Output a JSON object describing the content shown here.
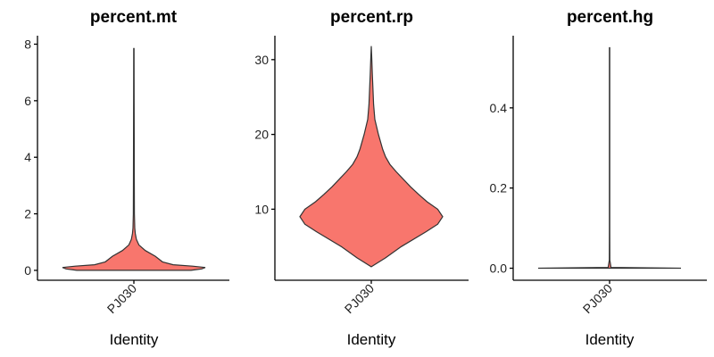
{
  "chart_data": [
    {
      "type": "violin",
      "title": "percent.mt",
      "xlabel": "Identity",
      "ylabel": "",
      "categories": [
        "PJ030"
      ],
      "ylim": [
        -0.35,
        8.3
      ],
      "yticks": [
        0,
        2,
        4,
        6,
        8
      ],
      "fill": "#F8766D",
      "density": [
        [
          0.0,
          0.8
        ],
        [
          0.05,
          0.95
        ],
        [
          0.1,
          1.0
        ],
        [
          0.15,
          0.82
        ],
        [
          0.2,
          0.55
        ],
        [
          0.3,
          0.4
        ],
        [
          0.5,
          0.3
        ],
        [
          0.7,
          0.16
        ],
        [
          0.9,
          0.07
        ],
        [
          1.1,
          0.035
        ],
        [
          1.3,
          0.02
        ],
        [
          1.5,
          0.012
        ],
        [
          2.0,
          0.008
        ],
        [
          3.0,
          0.006
        ],
        [
          4.5,
          0.005
        ],
        [
          6.0,
          0.004
        ],
        [
          7.85,
          0.003
        ]
      ]
    },
    {
      "type": "violin",
      "title": "percent.rp",
      "xlabel": "Identity",
      "ylabel": "",
      "categories": [
        "PJ030"
      ],
      "ylim": [
        0.5,
        33.2
      ],
      "yticks": [
        10,
        20,
        30
      ],
      "fill": "#F8766D",
      "density": [
        [
          2.3,
          0.0
        ],
        [
          3.5,
          0.2
        ],
        [
          5,
          0.42
        ],
        [
          7,
          0.77
        ],
        [
          8,
          0.93
        ],
        [
          9,
          1.0
        ],
        [
          10,
          0.93
        ],
        [
          11,
          0.78
        ],
        [
          12,
          0.66
        ],
        [
          13,
          0.55
        ],
        [
          14,
          0.45
        ],
        [
          15,
          0.35
        ],
        [
          16,
          0.26
        ],
        [
          17,
          0.2
        ],
        [
          18,
          0.16
        ],
        [
          20,
          0.1
        ],
        [
          22,
          0.05
        ],
        [
          24,
          0.032
        ],
        [
          26,
          0.024
        ],
        [
          28,
          0.015
        ],
        [
          30,
          0.007
        ],
        [
          31.8,
          0.0
        ]
      ]
    },
    {
      "type": "violin",
      "title": "percent.hg",
      "xlabel": "Identity",
      "ylabel": "",
      "categories": [
        "PJ030"
      ],
      "ylim": [
        -0.03,
        0.58
      ],
      "yticks": [
        0.0,
        0.2,
        0.4
      ],
      "yticklabels": [
        "0.0",
        "0.2",
        "0.4"
      ],
      "fill": "#F8766D",
      "density": [
        [
          0.0,
          1.0
        ],
        [
          0.002,
          0.02
        ],
        [
          0.02,
          0.004
        ],
        [
          0.1,
          0.003
        ],
        [
          0.3,
          0.002
        ],
        [
          0.55,
          0.002
        ]
      ]
    }
  ]
}
